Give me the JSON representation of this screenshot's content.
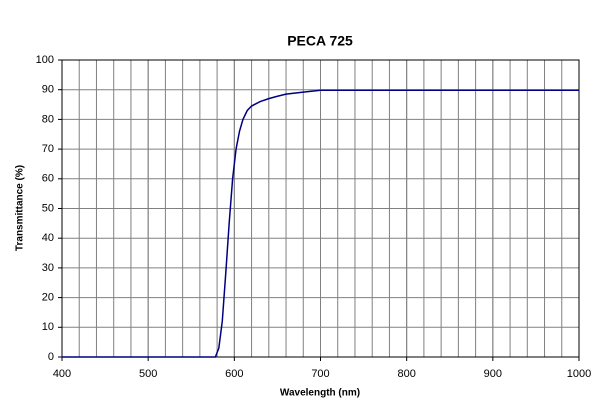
{
  "chart_data": {
    "type": "line",
    "title": "PECA 725",
    "x_label": "Wavelength (nm)",
    "y_label": "Transmittance (%)",
    "x": [
      400,
      578,
      582,
      586,
      590,
      594,
      598,
      602,
      606,
      610,
      615,
      620,
      630,
      640,
      650,
      660,
      680,
      700,
      800,
      900,
      1000
    ],
    "series": [
      {
        "name": "PECA 725",
        "color": "#000080",
        "values": [
          0,
          0,
          3,
          12,
          28,
          45,
          60,
          70,
          76,
          80,
          83,
          84.5,
          86,
          87,
          87.8,
          88.5,
          89.2,
          89.8,
          89.8,
          89.8,
          89.8
        ]
      }
    ],
    "xlim": [
      400,
      1000
    ],
    "xticks": [
      400,
      500,
      600,
      700,
      800,
      900,
      1000
    ],
    "xgrid": [
      420,
      440,
      460,
      480,
      500,
      520,
      540,
      560,
      580,
      600,
      620,
      640,
      660,
      680,
      700,
      720,
      740,
      760,
      780,
      800,
      820,
      840,
      860,
      880,
      900,
      920,
      940,
      960,
      980
    ],
    "ylim": [
      0,
      100
    ],
    "yticks": [
      0,
      10,
      20,
      30,
      40,
      50,
      60,
      70,
      80,
      90,
      100
    ],
    "grid": true
  }
}
